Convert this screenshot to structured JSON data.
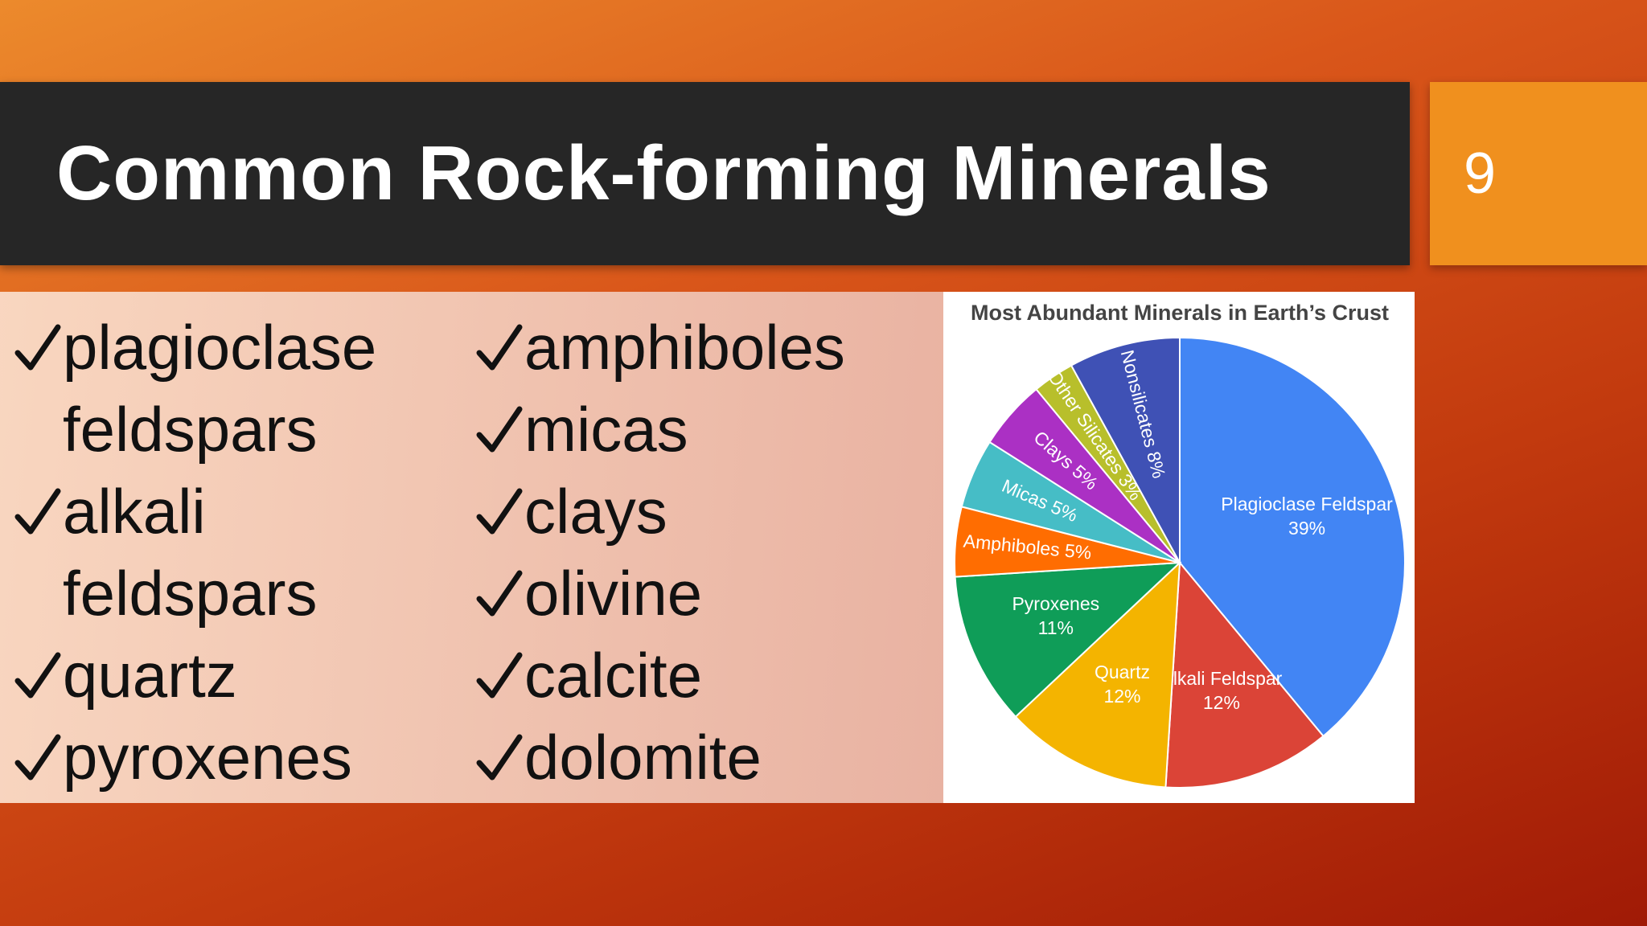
{
  "header": {
    "title": "Common Rock-forming Minerals",
    "slide_number": "9"
  },
  "bullets": {
    "left": [
      "plagioclase feldspars",
      "alkali feldspars",
      "quartz",
      "pyroxenes"
    ],
    "right": [
      "amphiboles",
      "micas",
      "clays",
      "olivine",
      "calcite",
      "dolomite"
    ]
  },
  "chart_data": {
    "type": "pie",
    "title": "Most Abundant Minerals in Earth’s Crust",
    "categories": [
      "Plagioclase Feldspar",
      "Alkali Feldspar",
      "Quartz",
      "Pyroxenes",
      "Amphiboles",
      "Micas",
      "Clays",
      "Other Silicates",
      "Nonsilicates"
    ],
    "values": [
      39,
      12,
      12,
      11,
      5,
      5,
      5,
      3,
      8
    ],
    "value_labels": [
      "39%",
      "12%",
      "12%",
      "11%",
      "5%",
      "5%",
      "5%",
      "3%",
      "8%"
    ],
    "colors": [
      "#4285f4",
      "#db4437",
      "#f4b400",
      "#0f9d58",
      "#ff6d01",
      "#46bdc6",
      "#ab30c4",
      "#b8bf2b",
      "#3f51b5"
    ]
  }
}
